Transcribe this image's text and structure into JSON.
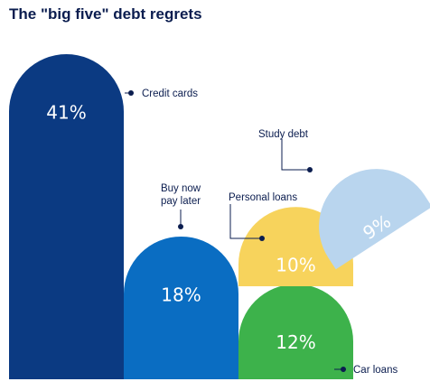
{
  "chart_data": {
    "type": "bar",
    "title": "The \"big five\" debt regrets",
    "xlabel": "",
    "ylabel": "",
    "unit": "%",
    "ylim": [
      0,
      45
    ],
    "categories": [
      "Credit cards",
      "Buy now pay later",
      "Car loans",
      "Personal loans",
      "Study debt"
    ],
    "values": [
      41,
      18,
      12,
      10,
      9
    ],
    "value_labels": [
      "41%",
      "18%",
      "12%",
      "10%",
      "9%"
    ],
    "label_lines": [
      [
        "Credit cards"
      ],
      [
        "Buy now",
        "pay later"
      ],
      [
        "Car loans"
      ],
      [
        "Personal loans"
      ],
      [
        "Study debt"
      ]
    ],
    "colors": [
      "#0b3a82",
      "#0a6dc2",
      "#3db24b",
      "#f7d35c",
      "#b9d5ee"
    ],
    "grid": false,
    "legend": "none"
  }
}
